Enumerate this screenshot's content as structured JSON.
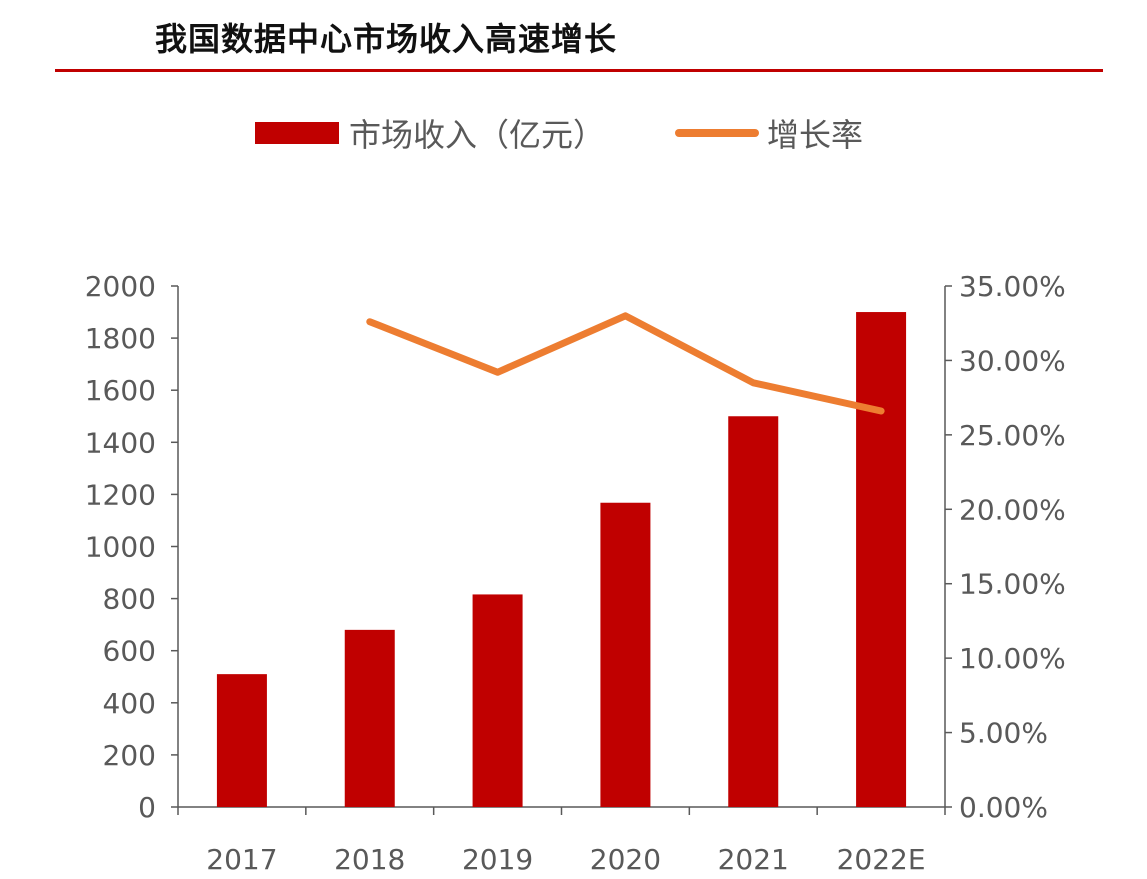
{
  "header": {
    "title": "我国数据中心市场收入高速增长"
  },
  "legend": {
    "bar_label": "市场收入（亿元）",
    "line_label": "增长率"
  },
  "colors": {
    "bar": "#c00000",
    "line": "#ed7d31",
    "rule": "#c00000",
    "axis": "#595959"
  },
  "chart_data": {
    "type": "bar",
    "categories": [
      "2017",
      "2018",
      "2019",
      "2020",
      "2021",
      "2022E"
    ],
    "series": [
      {
        "name": "市场收入（亿元）",
        "type": "bar",
        "axis": "left",
        "values": [
          510,
          680,
          816,
          1168,
          1500,
          1900
        ]
      },
      {
        "name": "增长率",
        "type": "line",
        "axis": "right",
        "values": [
          null,
          0.326,
          0.292,
          0.33,
          0.285,
          0.266
        ]
      }
    ],
    "y_left": {
      "min": 0,
      "max": 2000,
      "step": 200,
      "ticks": [
        "0",
        "200",
        "400",
        "600",
        "800",
        "1000",
        "1200",
        "1400",
        "1600",
        "1800",
        "2000"
      ]
    },
    "y_right": {
      "min": 0,
      "max": 0.35,
      "step": 0.05,
      "ticks": [
        "0.00%",
        "5.00%",
        "10.00%",
        "15.00%",
        "20.00%",
        "25.00%",
        "30.00%",
        "35.00%"
      ]
    },
    "grid": false,
    "legend_position": "top"
  }
}
